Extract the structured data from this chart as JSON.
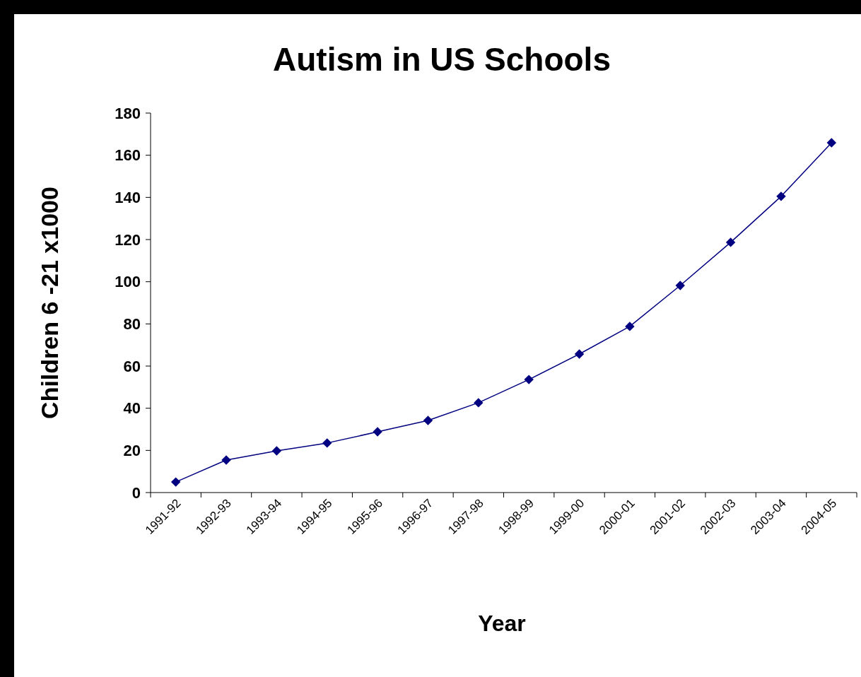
{
  "chart_data": {
    "type": "line",
    "title": "Autism in US Schools",
    "xlabel": "Year",
    "ylabel": "Children 6 -21 x1000",
    "categories": [
      "1991-92",
      "1992-93",
      "1993-94",
      "1994-95",
      "1995-96",
      "1996-97",
      "1997-98",
      "1998-99",
      "1999-00",
      "2000-01",
      "2001-02",
      "2002-03",
      "2003-04",
      "2004-05"
    ],
    "series": [
      {
        "color": "#000080",
        "values": [
          5,
          15.4,
          19.8,
          23.5,
          28.8,
          34.2,
          42.6,
          53.6,
          65.7,
          78.8,
          98.2,
          118.7,
          140.5,
          165.9
        ]
      }
    ],
    "ylim": [
      0,
      180
    ],
    "yticks": [
      0,
      20,
      40,
      60,
      80,
      100,
      120,
      140,
      160,
      180
    ],
    "marker": "diamond",
    "line_style": "solid",
    "grid": false
  }
}
